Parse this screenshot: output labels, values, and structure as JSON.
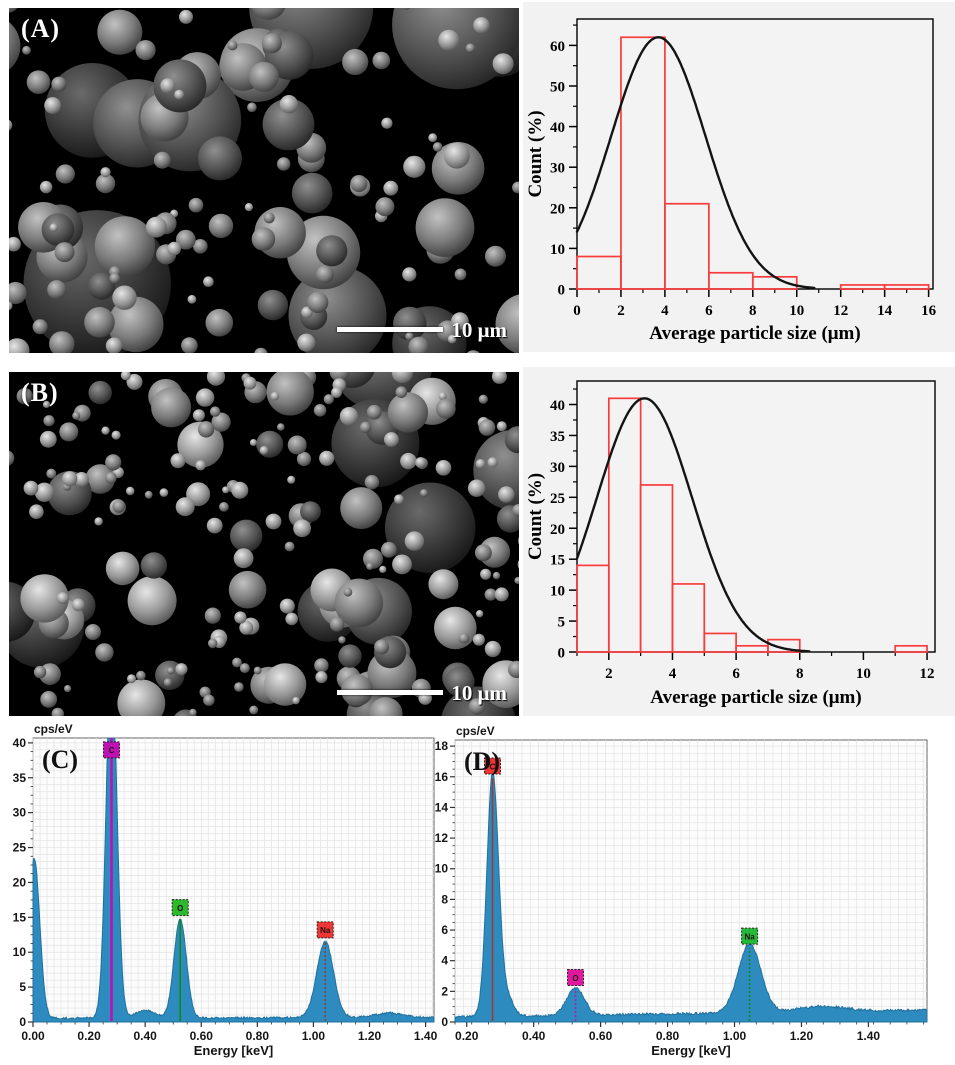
{
  "panels": {
    "sem_a": {
      "label": "(A)",
      "scalebar_label": "10 μm"
    },
    "sem_b": {
      "label": "(B)",
      "scalebar_label": "10 μm"
    }
  },
  "chart_data": [
    {
      "id": "hist-a",
      "type": "bar",
      "panel": "A",
      "xlabel": "Average particle size (μm)",
      "ylabel": "Count (%)",
      "xlim": [
        0,
        16.2
      ],
      "ylim": [
        0,
        66.5
      ],
      "xticks": [
        0,
        2,
        4,
        6,
        8,
        10,
        12,
        14,
        16
      ],
      "yticks": [
        0,
        10,
        20,
        30,
        40,
        50,
        60
      ],
      "x_minor_step": 1,
      "y_minor_step": 5,
      "bars_format": "[x0, x1, count_percent]",
      "bars": [
        [
          0,
          2,
          8
        ],
        [
          2,
          4,
          62
        ],
        [
          4,
          6,
          21
        ],
        [
          6,
          8,
          4
        ],
        [
          8,
          10,
          3
        ],
        [
          12,
          14,
          1
        ],
        [
          14,
          16,
          1
        ]
      ],
      "fit_curve": {
        "shape": "gaussian",
        "mu": 3.7,
        "sigma": 2.15,
        "amplitude": 62,
        "x_range": [
          0,
          10.8
        ]
      },
      "bar_color": "#f93b3b",
      "curve_color": "#141414",
      "bg_color": "#f3f3f3",
      "grid": false,
      "legend": false
    },
    {
      "id": "hist-b",
      "type": "bar",
      "panel": "B",
      "xlabel": "Average particle size (μm)",
      "ylabel": "Count (%)",
      "xlim": [
        1,
        12.25
      ],
      "ylim": [
        0,
        43.8
      ],
      "xticks": [
        2,
        4,
        6,
        8,
        10,
        12
      ],
      "yticks": [
        0,
        5,
        10,
        15,
        20,
        25,
        30,
        35,
        40
      ],
      "x_minor_step": 1,
      "y_minor_step": 2.5,
      "bars_format": "[x0, x1, count_percent]",
      "bars": [
        [
          1,
          2,
          14
        ],
        [
          2,
          3,
          41
        ],
        [
          3,
          4,
          27
        ],
        [
          4,
          5,
          11
        ],
        [
          5,
          6,
          3
        ],
        [
          6,
          7,
          1
        ],
        [
          7,
          8,
          2
        ],
        [
          11,
          12,
          1
        ]
      ],
      "fit_curve": {
        "shape": "gaussian",
        "mu": 3.12,
        "sigma": 1.5,
        "amplitude": 41,
        "x_range": [
          1,
          8.3
        ]
      },
      "bar_color": "#f93b3b",
      "curve_color": "#141414",
      "bg_color": "#f3f3f3",
      "grid": false,
      "legend": false
    },
    {
      "id": "eds-c",
      "type": "area",
      "panel_label": "(C)",
      "y_axis_label": "cps/eV",
      "xlabel": "Energy [keV]",
      "xlim": [
        0,
        1.43
      ],
      "ylim": [
        0,
        40.7
      ],
      "xticks": [
        0,
        0.2,
        0.4,
        0.6,
        0.8,
        1.0,
        1.2,
        1.4
      ],
      "yticks": [
        0,
        5,
        10,
        15,
        20,
        25,
        30,
        35,
        40
      ],
      "x_minor_step": 0.05,
      "y_minor_step": 1.25,
      "grid": {
        "x_step": 0.025,
        "y_step": 1
      },
      "baseline_start": 0.55,
      "baseline_end": 0.65,
      "noise": 0.28,
      "peaks": [
        {
          "x": 0.004,
          "height": 23,
          "sigma": 0.02
        },
        {
          "x": 0.28,
          "height": 52,
          "sigma": 0.019,
          "element": "C",
          "box_color": "#bf10b4",
          "line_color": "#bf10b4",
          "line_style": "solid",
          "label_y": 39,
          "clipped": true
        },
        {
          "x": 0.4,
          "height": 1.1,
          "sigma": 0.035
        },
        {
          "x": 0.525,
          "height": 14.2,
          "sigma": 0.022,
          "element": "O",
          "box_color": "#2db92d",
          "line_color": "#108a10",
          "line_style": "solid",
          "label_y": 16.4
        },
        {
          "x": 1.042,
          "height": 10.9,
          "sigma": 0.03,
          "element": "Na",
          "box_color": "#f03535",
          "line_color": "#8a4038",
          "line_style": "dotted",
          "label_y": 13.2
        },
        {
          "x": 1.27,
          "height": 0.65,
          "sigma": 0.05
        }
      ],
      "fill_color": "#2e8bc0",
      "edge_color": "#20719c",
      "bg_color": "#fcfcfc",
      "legend": false
    },
    {
      "id": "eds-d",
      "type": "area",
      "panel_label": "(D)",
      "y_axis_label": "cps/eV",
      "xlabel": "Energy [keV]",
      "xlim": [
        0.165,
        1.575
      ],
      "ylim": [
        0,
        18.4
      ],
      "xticks": [
        0.2,
        0.4,
        0.6,
        0.8,
        1.0,
        1.2,
        1.4
      ],
      "yticks": [
        0,
        2,
        4,
        6,
        8,
        10,
        12,
        14,
        16,
        18
      ],
      "x_minor_step": 0.05,
      "y_minor_step": 0.5,
      "grid": {
        "x_step": 0.025,
        "y_step": 0.5
      },
      "baseline_start": 0.32,
      "baseline_end": 0.78,
      "noise": 0.16,
      "peaks": [
        {
          "x": 0.277,
          "height": 15.6,
          "sigma": 0.017,
          "element": "C",
          "box_color": "#f03535",
          "line_color": "#9c3a32",
          "line_style": "solid",
          "label_y": 16.7
        },
        {
          "x": 0.312,
          "height": 1.6,
          "sigma": 0.022
        },
        {
          "x": 0.525,
          "height": 1.8,
          "sigma": 0.026,
          "element": "O",
          "box_color": "#e0189f",
          "line_color": "#c013ae",
          "line_style": "dotted",
          "label_y": 2.9
        },
        {
          "x": 1.045,
          "height": 4.5,
          "sigma": 0.034,
          "element": "Na",
          "box_color": "#25b93a",
          "line_color": "#108a10",
          "line_style": "dotted",
          "label_y": 5.6
        },
        {
          "x": 1.26,
          "height": 0.35,
          "sigma": 0.07
        }
      ],
      "fill_color": "#2e8bc0",
      "edge_color": "#20719c",
      "bg_color": "#fcfcfc",
      "legend": false
    }
  ]
}
